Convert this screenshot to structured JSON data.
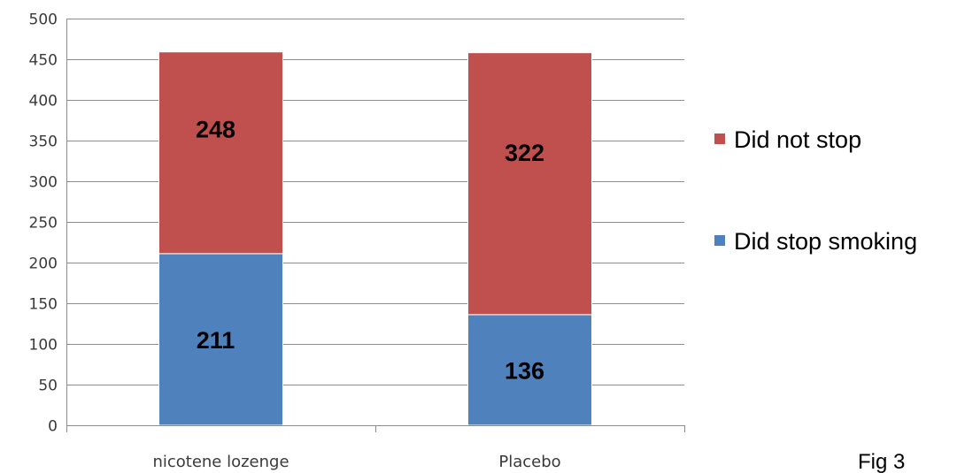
{
  "chart_data": {
    "type": "bar",
    "stacked": true,
    "categories": [
      "nicotene lozenge",
      "Placebo"
    ],
    "series": [
      {
        "name": "Did stop smoking",
        "values": [
          211,
          136
        ],
        "color": "#4f81bd"
      },
      {
        "name": "Did not stop",
        "values": [
          248,
          322
        ],
        "color": "#c0504d"
      }
    ],
    "ylim": [
      0,
      500
    ],
    "yticks": [
      0,
      50,
      100,
      150,
      200,
      250,
      300,
      350,
      400,
      450,
      500
    ],
    "grid": true,
    "legend_position": "right",
    "legend_order": [
      1,
      0
    ]
  },
  "figure_caption": "Fig 3"
}
